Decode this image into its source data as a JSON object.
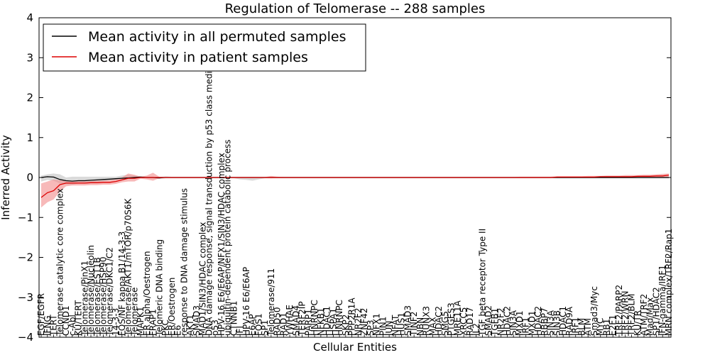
{
  "chart_data": {
    "type": "line",
    "title": "Regulation of Telomerase -- 288 samples",
    "xlabel": "Cellular Entities",
    "ylabel": "Inferred Activity",
    "ylim": [
      -4,
      4
    ],
    "yticks": [
      -4,
      -3,
      -2,
      -1,
      0,
      1,
      2,
      3,
      4
    ],
    "grid": false,
    "legend_position": "top-left",
    "categories": [
      "EGF/EGFR",
      "IFNG",
      "TERT",
      "Telomerase catalytic core complex",
      "CCND1",
      "c-Abl",
      "KU/TERT",
      "Telomerase/PinX1",
      "Telomerase/Nucleolin",
      "Telomerase/EST1B",
      "Telomerase/HSP90",
      "Telomerase/DKC1/C2",
      "14-3-3",
      "FOS/NF kappa B1/14-3-3",
      "Telomerase/AKT1/mTOR/p70S6K",
      "Telomerase",
      "MAPK1",
      "ER alpha/Oestrogen",
      "FRAP1",
      "Telomeric DNA binding",
      "PKC",
      "ER/Oestrogen",
      "E6",
      "response to DNA damage stimulus",
      "AKT1",
      "SMAD3",
      "MAD1/SIN3/HDAC complex",
      "DNA damage response, signal transduction by p53 class mediator",
      "p53",
      "HPV-16 E6/E6AP/NFX1/SIN3/HDAC complex",
      "ubiquitin-dependent protein catabolic process",
      "CTNNB1",
      "IFI",
      "HPV-16 E6/E6AP",
      "E6AP",
      "FOS1",
      "SP1",
      "Telomerase/911",
      "RAD50",
      "RAD1",
      "YWHAE",
      "SMAD4",
      "TERF2IP",
      "PARP1",
      "HNRNPC",
      "NFKB1",
      "HDAC1",
      "HSPA1",
      "HNRNPC",
      "SKP2",
      "PPP2R1A",
      "NR2F2",
      "ZNF42",
      "SP3",
      "NFX1",
      "PIN1",
      "JUN",
      "NFAT",
      "HUS1",
      "SMAD3",
      "TINF2",
      "NBN",
      "RUNX3",
      "MAX",
      "HDAC2",
      "SMG5",
      "PTGES3",
      "MRE11A",
      "XRCC5",
      "RAD17",
      "IL2",
      "TGF beta receptor Type II",
      "SMAD2",
      "TGFB1",
      "NR2F2",
      "HDAC2",
      "SIN3A",
      "MXD1",
      "IRF1",
      "MXD1",
      "HDAC2",
      "RBBP7",
      "SIN3A",
      "SIN3B",
      "HDAC1",
      "RAD9A",
      "IRF1",
      "BLM",
      "ATM",
      "Smad3/Myc",
      "MYC",
      "RB1",
      "E2F1",
      "TRF2/PARP2",
      "TRF2/WRN",
      "TRF2/BLM",
      "KU/TR",
      "ATM/TRF2",
      "Mad/Max",
      "SP1/HDAC2",
      "IFN-gamma/IRF1",
      "MRN complex/TRF2/Rap1"
    ],
    "series": [
      {
        "name": "Mean activity in all permuted samples",
        "color": "#000000",
        "values": [
          0.0,
          0.02,
          0.01,
          -0.05,
          -0.08,
          -0.09,
          -0.08,
          -0.08,
          -0.07,
          -0.06,
          -0.05,
          -0.04,
          -0.03,
          -0.02,
          -0.01,
          0.0,
          0.01,
          0.0,
          0.0,
          -0.01,
          0.0,
          0.0,
          0.0,
          0.0,
          0.0,
          0.0,
          0.0,
          0.0,
          0.0,
          0.0,
          0.0,
          0.0,
          0.0,
          0.0,
          0.0,
          0.0,
          0.0,
          0.0,
          0.0,
          0.0,
          0.0,
          0.0,
          0.0,
          0.0,
          0.0,
          0.0,
          0.0,
          0.0,
          0.0,
          0.0,
          0.0,
          0.0,
          0.0,
          0.0,
          0.0,
          0.0,
          0.0,
          0.0,
          0.0,
          0.0,
          0.0,
          0.0,
          0.0,
          0.0,
          0.0,
          0.0,
          0.0,
          0.0,
          0.0,
          0.0,
          0.0,
          0.0,
          0.0,
          0.0,
          0.0,
          0.0,
          0.0,
          0.0,
          0.0,
          0.0,
          0.0,
          0.0,
          0.0,
          0.0,
          0.0,
          0.0,
          0.0,
          0.0,
          0.0,
          0.0,
          0.0,
          0.0,
          0.0,
          0.0,
          0.0,
          0.0,
          0.0,
          0.0,
          0.0,
          0.0,
          0.0,
          0.0
        ]
      },
      {
        "name": "Mean activity in patient samples",
        "color": "#dd0000",
        "values": [
          -0.5,
          -0.38,
          -0.33,
          -0.18,
          -0.14,
          -0.14,
          -0.14,
          -0.14,
          -0.13,
          -0.13,
          -0.12,
          -0.12,
          -0.1,
          -0.06,
          -0.02,
          -0.02,
          0.0,
          0.0,
          0.0,
          0.0,
          0.0,
          0.0,
          0.0,
          0.0,
          0.0,
          0.0,
          0.0,
          0.0,
          0.0,
          0.0,
          0.0,
          0.0,
          0.0,
          0.0,
          0.0,
          0.0,
          0.0,
          0.0,
          0.0,
          0.0,
          0.0,
          0.0,
          0.0,
          0.0,
          0.0,
          0.0,
          0.0,
          0.0,
          0.0,
          0.0,
          0.0,
          0.0,
          0.0,
          0.0,
          0.0,
          0.0,
          0.0,
          0.0,
          0.0,
          0.0,
          0.0,
          0.0,
          0.0,
          0.0,
          0.0,
          0.0,
          0.0,
          0.0,
          0.0,
          0.0,
          0.0,
          0.0,
          0.0,
          0.0,
          0.0,
          0.0,
          0.0,
          0.0,
          0.0,
          0.0,
          0.0,
          0.0,
          0.0,
          0.01,
          0.01,
          0.01,
          0.01,
          0.01,
          0.01,
          0.01,
          0.02,
          0.02,
          0.02,
          0.02,
          0.02,
          0.02,
          0.03,
          0.03,
          0.03,
          0.04,
          0.04,
          0.06
        ]
      }
    ],
    "band_permuted": {
      "color": "#bbbbbb",
      "upper": [
        0.05,
        0.08,
        0.1,
        0.08,
        0.0,
        0.02,
        0.02,
        0.02,
        0.02,
        0.02,
        0.02,
        0.02,
        0.02,
        0.05,
        0.07,
        0.05,
        0.03,
        0.02,
        0.02,
        0.02,
        0.03,
        0.02,
        0.02,
        0.02,
        0.02,
        0.02,
        0.02,
        0.02,
        0.02,
        0.02,
        0.02,
        0.02,
        0.02,
        0.02,
        0.02,
        0.02,
        0.02,
        0.02,
        0.02,
        0.02,
        0.02,
        0.02,
        0.02,
        0.02,
        0.02,
        0.02,
        0.02,
        0.02,
        0.02,
        0.02,
        0.02,
        0.02,
        0.02,
        0.02,
        0.02,
        0.02,
        0.02,
        0.02,
        0.02,
        0.02,
        0.02,
        0.02,
        0.02,
        0.02,
        0.02,
        0.02,
        0.02,
        0.02,
        0.02,
        0.02,
        0.02,
        0.02,
        0.02,
        0.02,
        0.02,
        0.02,
        0.02,
        0.02,
        0.02,
        0.02,
        0.02,
        0.02,
        0.02,
        0.02,
        0.02,
        0.02,
        0.02,
        0.02,
        0.02,
        0.02,
        0.02,
        0.02,
        0.02,
        0.02,
        0.02,
        0.02,
        0.02,
        0.02,
        0.02,
        0.02,
        0.02,
        0.02
      ],
      "lower": [
        -0.1,
        -0.06,
        -0.08,
        -0.15,
        -0.17,
        -0.18,
        -0.15,
        -0.15,
        -0.14,
        -0.12,
        -0.1,
        -0.08,
        -0.06,
        -0.04,
        -0.04,
        -0.03,
        -0.02,
        -0.02,
        -0.02,
        -0.03,
        -0.02,
        -0.02,
        -0.02,
        -0.02,
        -0.02,
        -0.02,
        -0.02,
        -0.02,
        -0.02,
        -0.02,
        -0.02,
        -0.02,
        -0.05,
        -0.06,
        -0.08,
        -0.05,
        -0.02,
        -0.02,
        -0.02,
        -0.02,
        -0.02,
        -0.02,
        -0.02,
        -0.02,
        -0.02,
        -0.02,
        -0.02,
        -0.02,
        -0.02,
        -0.02,
        -0.02,
        -0.02,
        -0.02,
        -0.02,
        -0.02,
        -0.02,
        -0.02,
        -0.02,
        -0.02,
        -0.02,
        -0.02,
        -0.02,
        -0.02,
        -0.02,
        -0.02,
        -0.02,
        -0.02,
        -0.02,
        -0.02,
        -0.02,
        -0.02,
        -0.02,
        -0.02,
        -0.02,
        -0.02,
        -0.02,
        -0.02,
        -0.02,
        -0.02,
        -0.02,
        -0.02,
        -0.02,
        -0.02,
        -0.02,
        -0.02,
        -0.02,
        -0.02,
        -0.02,
        -0.02,
        -0.02,
        -0.02,
        -0.02,
        -0.02,
        -0.02,
        -0.02,
        -0.02,
        -0.02,
        -0.02,
        -0.02,
        -0.02,
        -0.02,
        -0.02
      ]
    },
    "band_patient": {
      "color": "#f28a8a",
      "upper": [
        -0.15,
        -0.1,
        -0.05,
        -0.07,
        -0.08,
        -0.09,
        -0.09,
        -0.09,
        -0.09,
        -0.08,
        -0.08,
        -0.07,
        -0.05,
        0.0,
        0.1,
        0.07,
        0.02,
        0.05,
        0.12,
        0.02,
        0.0,
        0.0,
        0.0,
        0.0,
        0.0,
        0.0,
        0.0,
        0.0,
        0.0,
        0.0,
        0.01,
        0.01,
        0.01,
        0.01,
        0.01,
        0.01,
        0.01,
        0.04,
        0.02,
        0.01,
        0.01,
        0.01,
        0.01,
        0.01,
        0.01,
        0.01,
        0.01,
        0.01,
        0.01,
        0.01,
        0.01,
        0.01,
        0.01,
        0.01,
        0.01,
        0.01,
        0.01,
        0.01,
        0.01,
        0.01,
        0.01,
        0.01,
        0.01,
        0.01,
        0.01,
        0.01,
        0.01,
        0.01,
        0.01,
        0.01,
        0.01,
        0.01,
        0.01,
        0.01,
        0.01,
        0.01,
        0.01,
        0.02,
        0.02,
        0.02,
        0.02,
        0.02,
        0.02,
        0.03,
        0.03,
        0.03,
        0.03,
        0.03,
        0.04,
        0.04,
        0.04,
        0.05,
        0.05,
        0.05,
        0.06,
        0.06,
        0.06,
        0.07,
        0.07,
        0.08,
        0.09,
        0.1
      ],
      "lower": [
        -0.75,
        -0.62,
        -0.55,
        -0.35,
        -0.22,
        -0.2,
        -0.2,
        -0.2,
        -0.19,
        -0.19,
        -0.18,
        -0.18,
        -0.16,
        -0.12,
        -0.1,
        -0.1,
        -0.03,
        -0.05,
        -0.08,
        -0.02,
        -0.01,
        -0.01,
        -0.01,
        -0.01,
        -0.01,
        -0.01,
        -0.01,
        -0.01,
        -0.01,
        -0.01,
        -0.01,
        -0.01,
        -0.01,
        -0.01,
        -0.01,
        -0.01,
        -0.01,
        -0.02,
        -0.01,
        -0.01,
        -0.01,
        -0.01,
        -0.01,
        -0.01,
        -0.01,
        -0.01,
        -0.01,
        -0.01,
        -0.01,
        -0.01,
        -0.01,
        -0.01,
        -0.01,
        -0.01,
        -0.01,
        -0.01,
        -0.01,
        -0.01,
        -0.01,
        -0.01,
        -0.01,
        -0.01,
        -0.01,
        -0.01,
        -0.01,
        -0.01,
        -0.01,
        -0.01,
        -0.01,
        -0.01,
        -0.01,
        -0.01,
        -0.01,
        -0.01,
        -0.01,
        -0.01,
        -0.01,
        -0.01,
        -0.01,
        -0.01,
        -0.01,
        -0.01,
        -0.01,
        -0.01,
        -0.01,
        -0.01,
        -0.01,
        -0.01,
        -0.01,
        -0.01,
        -0.01,
        -0.01,
        -0.01,
        -0.01,
        -0.01,
        -0.01,
        -0.01,
        -0.01,
        -0.01,
        -0.01,
        -0.01,
        -0.01
      ]
    }
  }
}
